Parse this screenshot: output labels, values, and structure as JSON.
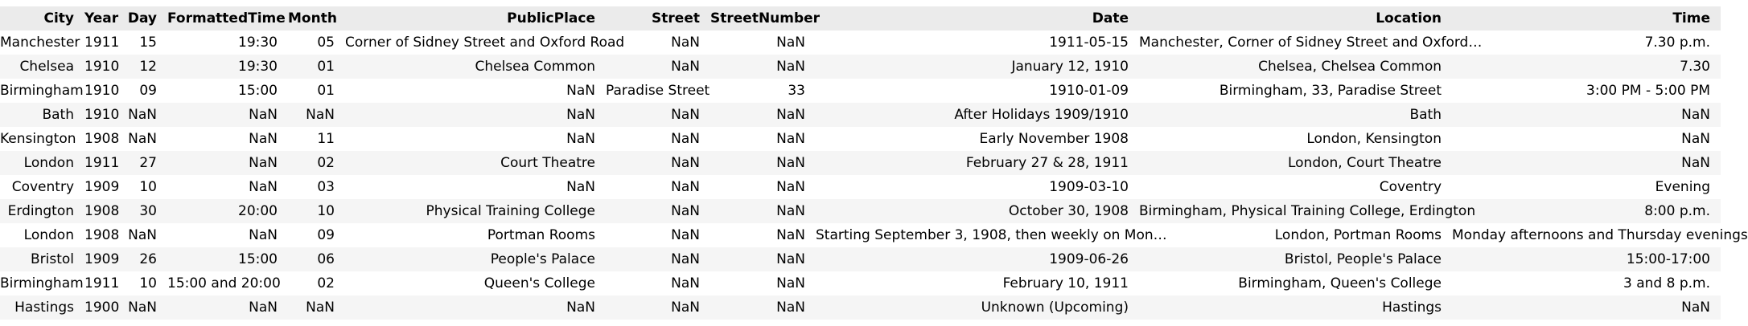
{
  "columns": [
    "City",
    "Year",
    "Day",
    "FormattedTime",
    "Month",
    "PublicPlace",
    "Street",
    "StreetNumber",
    "Date",
    "Location",
    "Time"
  ],
  "rows": [
    [
      "Manchester",
      "1911",
      "15",
      "19:30",
      "05",
      "Corner of Sidney Street and Oxford Road",
      "NaN",
      "NaN",
      "1911-05-15",
      "Manchester, Corner of Sidney Street and Oxford…",
      "7.30 p.m."
    ],
    [
      "Chelsea",
      "1910",
      "12",
      "19:30",
      "01",
      "Chelsea Common",
      "NaN",
      "NaN",
      "January 12, 1910",
      "Chelsea, Chelsea Common",
      "7.30"
    ],
    [
      "Birmingham",
      "1910",
      "09",
      "15:00",
      "01",
      "NaN",
      "Paradise Street",
      "33",
      "1910-01-09",
      "Birmingham, 33, Paradise Street",
      "3:00 PM - 5:00 PM"
    ],
    [
      "Bath",
      "1910",
      "NaN",
      "NaN",
      "NaN",
      "NaN",
      "NaN",
      "NaN",
      "After Holidays 1909/1910",
      "Bath",
      "NaN"
    ],
    [
      "Kensington",
      "1908",
      "NaN",
      "NaN",
      "11",
      "NaN",
      "NaN",
      "NaN",
      "Early November 1908",
      "London, Kensington",
      "NaN"
    ],
    [
      "London",
      "1911",
      "27",
      "NaN",
      "02",
      "Court Theatre",
      "NaN",
      "NaN",
      "February 27 & 28, 1911",
      "London, Court Theatre",
      "NaN"
    ],
    [
      "Coventry",
      "1909",
      "10",
      "NaN",
      "03",
      "NaN",
      "NaN",
      "NaN",
      "1909-03-10",
      "Coventry",
      "Evening"
    ],
    [
      "Erdington",
      "1908",
      "30",
      "20:00",
      "10",
      "Physical Training College",
      "NaN",
      "NaN",
      "October 30, 1908",
      "Birmingham, Physical Training College, Erdington",
      "8:00 p.m."
    ],
    [
      "London",
      "1908",
      "NaN",
      "NaN",
      "09",
      "Portman Rooms",
      "NaN",
      "NaN",
      "Starting September 3, 1908, then weekly on Mon…",
      "London, Portman Rooms",
      "Monday afternoons and Thursday evenings"
    ],
    [
      "Bristol",
      "1909",
      "26",
      "15:00",
      "06",
      "People's Palace",
      "NaN",
      "NaN",
      "1909-06-26",
      "Bristol, People's Palace",
      "15:00-17:00"
    ],
    [
      "Birmingham",
      "1911",
      "10",
      "15:00 and 20:00",
      "02",
      "Queen's College",
      "NaN",
      "NaN",
      "February 10, 1911",
      "Birmingham, Queen's College",
      "3 and 8 p.m."
    ],
    [
      "Hastings",
      "1900",
      "NaN",
      "NaN",
      "NaN",
      "NaN",
      "NaN",
      "NaN",
      "Unknown (Upcoming)",
      "Hastings",
      "NaN"
    ]
  ]
}
